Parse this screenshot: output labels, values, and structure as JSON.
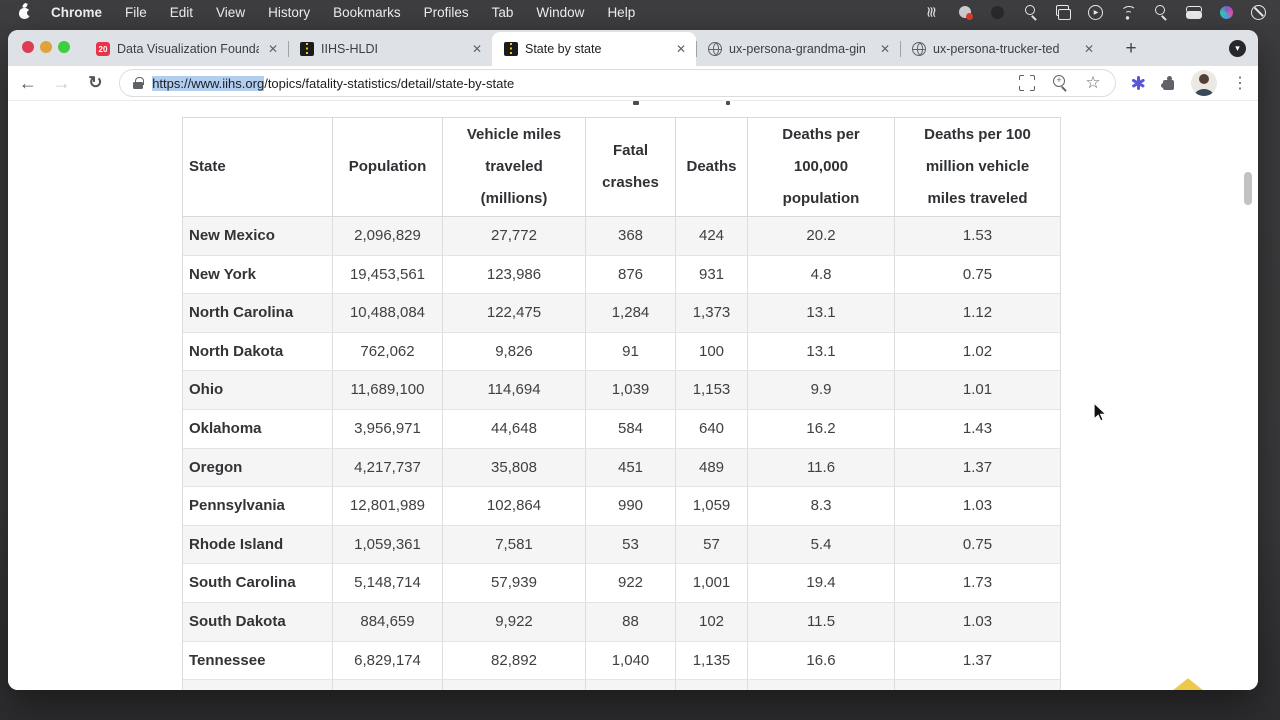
{
  "menu_bar": {
    "items": [
      "Chrome",
      "File",
      "Edit",
      "View",
      "History",
      "Bookmarks",
      "Profiles",
      "Tab",
      "Window",
      "Help"
    ],
    "status_icons": [
      "waves-icon",
      "screen-record-icon",
      "app-circle-icon",
      "magnifier-icon",
      "displays-icon",
      "play-circle-icon",
      "wifi-icon",
      "spotlight-search-icon",
      "toggle-switches-icon",
      "colorful-app-icon",
      "do-not-disturb-icon"
    ]
  },
  "tab_bar": {
    "close_glyph": "✕",
    "new_tab_label": "+",
    "tab_search_glyph": "▼",
    "tabs": [
      {
        "label": "Data Visualization Founda",
        "favicon": "dv20",
        "active": false
      },
      {
        "label": "IIHS-HLDI",
        "favicon": "road",
        "active": false
      },
      {
        "label": "State by state",
        "favicon": "road",
        "active": true
      },
      {
        "label": "ux-persona-grandma-gin",
        "favicon": "globe",
        "active": false
      },
      {
        "label": "ux-persona-trucker-ted",
        "favicon": "globe",
        "active": false
      }
    ]
  },
  "toolbar": {
    "back_glyph": "←",
    "forward_glyph": "→",
    "reload_glyph": "↻",
    "url_selected": "https://www.iihs.org",
    "url_rest": "/topics/fatality-statistics/detail/state-by-state"
  },
  "table": {
    "headers": [
      "State",
      "Population",
      "Vehicle miles traveled (millions)",
      "Fatal crashes",
      "Deaths",
      "Deaths per 100,000 population",
      "Deaths per 100 million vehicle miles traveled"
    ],
    "rows": [
      [
        "New Mexico",
        "2,096,829",
        "27,772",
        "368",
        "424",
        "20.2",
        "1.53"
      ],
      [
        "New York",
        "19,453,561",
        "123,986",
        "876",
        "931",
        "4.8",
        "0.75"
      ],
      [
        "North Carolina",
        "10,488,084",
        "122,475",
        "1,284",
        "1,373",
        "13.1",
        "1.12"
      ],
      [
        "North Dakota",
        "762,062",
        "9,826",
        "91",
        "100",
        "13.1",
        "1.02"
      ],
      [
        "Ohio",
        "11,689,100",
        "114,694",
        "1,039",
        "1,153",
        "9.9",
        "1.01"
      ],
      [
        "Oklahoma",
        "3,956,971",
        "44,648",
        "584",
        "640",
        "16.2",
        "1.43"
      ],
      [
        "Oregon",
        "4,217,737",
        "35,808",
        "451",
        "489",
        "11.6",
        "1.37"
      ],
      [
        "Pennsylvania",
        "12,801,989",
        "102,864",
        "990",
        "1,059",
        "8.3",
        "1.03"
      ],
      [
        "Rhode Island",
        "1,059,361",
        "7,581",
        "53",
        "57",
        "5.4",
        "0.75"
      ],
      [
        "South Carolina",
        "5,148,714",
        "57,939",
        "922",
        "1,001",
        "19.4",
        "1.73"
      ],
      [
        "South Dakota",
        "884,659",
        "9,922",
        "88",
        "102",
        "11.5",
        "1.03"
      ],
      [
        "Tennessee",
        "6,829,174",
        "82,892",
        "1,040",
        "1,135",
        "16.6",
        "1.37"
      ]
    ]
  },
  "colors": {
    "url_selection": "#b1cdf0",
    "row_stripe": "#f5f5f6",
    "back_to_top_gold": "#edc84a",
    "tabstrip_bg": "#dee1e6"
  }
}
